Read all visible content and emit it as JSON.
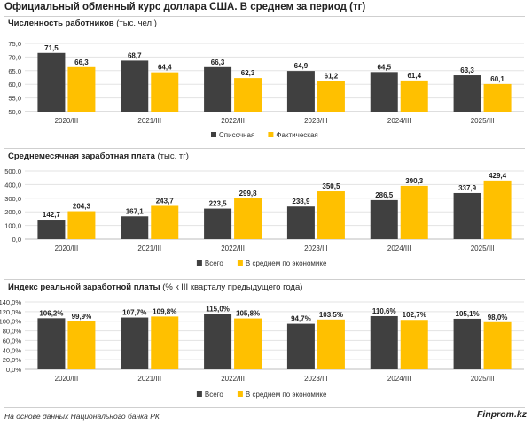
{
  "title": "Официальный обменный курс доллара США. В среднем за период (тг)",
  "source": "На основе данных Национального банка РК",
  "logo": "Finprom.kz",
  "colors": {
    "dark": "#404040",
    "accent": "#FFC000"
  },
  "chart_data": [
    {
      "type": "bar",
      "title": "Численность работников",
      "unit": "(тыс. чел.)",
      "categories": [
        "2020/III",
        "2021/III",
        "2022/III",
        "2023/III",
        "2024/III",
        "2025/III"
      ],
      "series": [
        {
          "name": "Списочная",
          "values": [
            71.5,
            68.7,
            66.3,
            64.9,
            64.5,
            63.3
          ],
          "labels": [
            "71,5",
            "68,7",
            "66,3",
            "64,9",
            "64,5",
            "63,3"
          ]
        },
        {
          "name": "Фактическая",
          "values": [
            66.3,
            64.4,
            62.3,
            61.2,
            61.4,
            60.1
          ],
          "labels": [
            "66,3",
            "64,4",
            "62,3",
            "61,2",
            "61,4",
            "60,1"
          ]
        }
      ],
      "ylim": [
        50,
        75
      ],
      "yticks": [
        50,
        55,
        60,
        65,
        70,
        75
      ],
      "ytick_labels": [
        "50,0",
        "55,0",
        "60,0",
        "65,0",
        "70,0",
        "75,0"
      ],
      "grid": true,
      "legend": "bottom-center"
    },
    {
      "type": "bar",
      "title": "Среднемесячная заработная плата",
      "unit": "(тыс. тг)",
      "categories": [
        "2020/III",
        "2021/III",
        "2022/III",
        "2023/III",
        "2024/III",
        "2025/III"
      ],
      "series": [
        {
          "name": "Всего",
          "values": [
            142.7,
            167.1,
            223.5,
            238.9,
            286.5,
            337.9
          ],
          "labels": [
            "142,7",
            "167,1",
            "223,5",
            "238,9",
            "286,5",
            "337,9"
          ]
        },
        {
          "name": "В среднем по экономике",
          "values": [
            204.3,
            243.7,
            299.8,
            350.5,
            390.3,
            429.4
          ],
          "labels": [
            "204,3",
            "243,7",
            "299,8",
            "350,5",
            "390,3",
            "429,4"
          ]
        }
      ],
      "ylim": [
        0,
        500
      ],
      "yticks": [
        0,
        100,
        200,
        300,
        400,
        500
      ],
      "ytick_labels": [
        "0,0",
        "100,0",
        "200,0",
        "300,0",
        "400,0",
        "500,0"
      ],
      "grid": true,
      "legend": "bottom-center"
    },
    {
      "type": "bar",
      "title": "Индекс реальной заработной платы",
      "unit": "(% к III кварталу предыдущего года)",
      "categories": [
        "2020/III",
        "2021/III",
        "2022/III",
        "2023/III",
        "2024/III",
        "2025/III"
      ],
      "series": [
        {
          "name": "Всего",
          "values": [
            106.2,
            107.7,
            115.0,
            94.7,
            110.6,
            105.1
          ],
          "labels": [
            "106,2%",
            "107,7%",
            "115,0%",
            "94,7%",
            "110,6%",
            "105,1%"
          ]
        },
        {
          "name": "В среднем по экономике",
          "values": [
            99.9,
            109.8,
            105.8,
            103.5,
            102.7,
            98.0
          ],
          "labels": [
            "99,9%",
            "109,8%",
            "105,8%",
            "103,5%",
            "102,7%",
            "98,0%"
          ]
        }
      ],
      "ylim": [
        0,
        140
      ],
      "yticks": [
        0,
        20,
        40,
        60,
        80,
        100,
        120,
        140
      ],
      "ytick_labels": [
        "0,0%",
        "20,0%",
        "40,0%",
        "60,0%",
        "80,0%",
        "100,0%",
        "120,0%",
        "140,0%"
      ],
      "grid": true,
      "legend": "bottom-center"
    }
  ]
}
